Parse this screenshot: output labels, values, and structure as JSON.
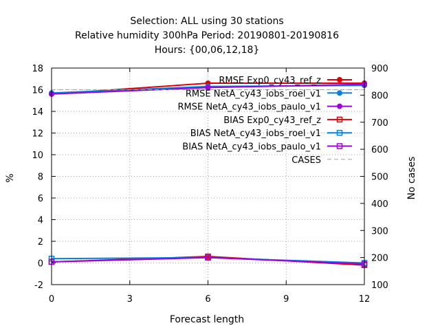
{
  "chart_data": {
    "type": "line",
    "title": [
      "Selection: ALL using    30 stations",
      "Relative humidity 300hPa   Period: 20190801-20190816",
      "Hours: {00,06,12,18}"
    ],
    "xlabel": "Forecast length",
    "ylabel": "%",
    "y2label": "No cases",
    "x": [
      0,
      6,
      12
    ],
    "xticks": [
      "0",
      "3",
      "6",
      "9",
      "12"
    ],
    "xlim": [
      0,
      12
    ],
    "ylim": [
      -2,
      18
    ],
    "yticks": [
      "-2",
      "0",
      "2",
      "4",
      "6",
      "8",
      "10",
      "12",
      "14",
      "16",
      "18"
    ],
    "y2lim": [
      100,
      900
    ],
    "y2ticks": [
      "100",
      "200",
      "300",
      "400",
      "500",
      "600",
      "700",
      "800",
      "900"
    ],
    "grid": true,
    "legend_position": "top-right",
    "series": [
      {
        "name": "RMSE Exp0_cy43_ref_z",
        "values": [
          15.6,
          16.6,
          16.6
        ],
        "color": "#e00000",
        "marker": "filled-circle",
        "axis": "y"
      },
      {
        "name": "RMSE NetA_cy43_iobs_roel_v1",
        "values": [
          15.7,
          16.3,
          16.4
        ],
        "color": "#0080e0",
        "marker": "filled-circle",
        "axis": "y"
      },
      {
        "name": "RMSE NetA_cy43_iobs_paulo_v1",
        "values": [
          15.6,
          16.2,
          16.5
        ],
        "color": "#a000e0",
        "marker": "filled-circle",
        "axis": "y"
      },
      {
        "name": "BIAS Exp0_cy43_ref_z",
        "values": [
          0.1,
          0.6,
          -0.2
        ],
        "color": "#e00000",
        "marker": "open-square",
        "axis": "y"
      },
      {
        "name": "BIAS NetA_cy43_iobs_roel_v1",
        "values": [
          0.4,
          0.5,
          0.0
        ],
        "color": "#0080e0",
        "marker": "open-square",
        "axis": "y"
      },
      {
        "name": "BIAS NetA_cy43_iobs_paulo_v1",
        "values": [
          0.1,
          0.5,
          -0.1
        ],
        "color": "#a000e0",
        "marker": "open-square",
        "axis": "y"
      },
      {
        "name": "CASES",
        "values": [
          820,
          820,
          820
        ],
        "color": "#a0a0a0",
        "marker": "none",
        "dash": true,
        "axis": "y2"
      }
    ]
  }
}
